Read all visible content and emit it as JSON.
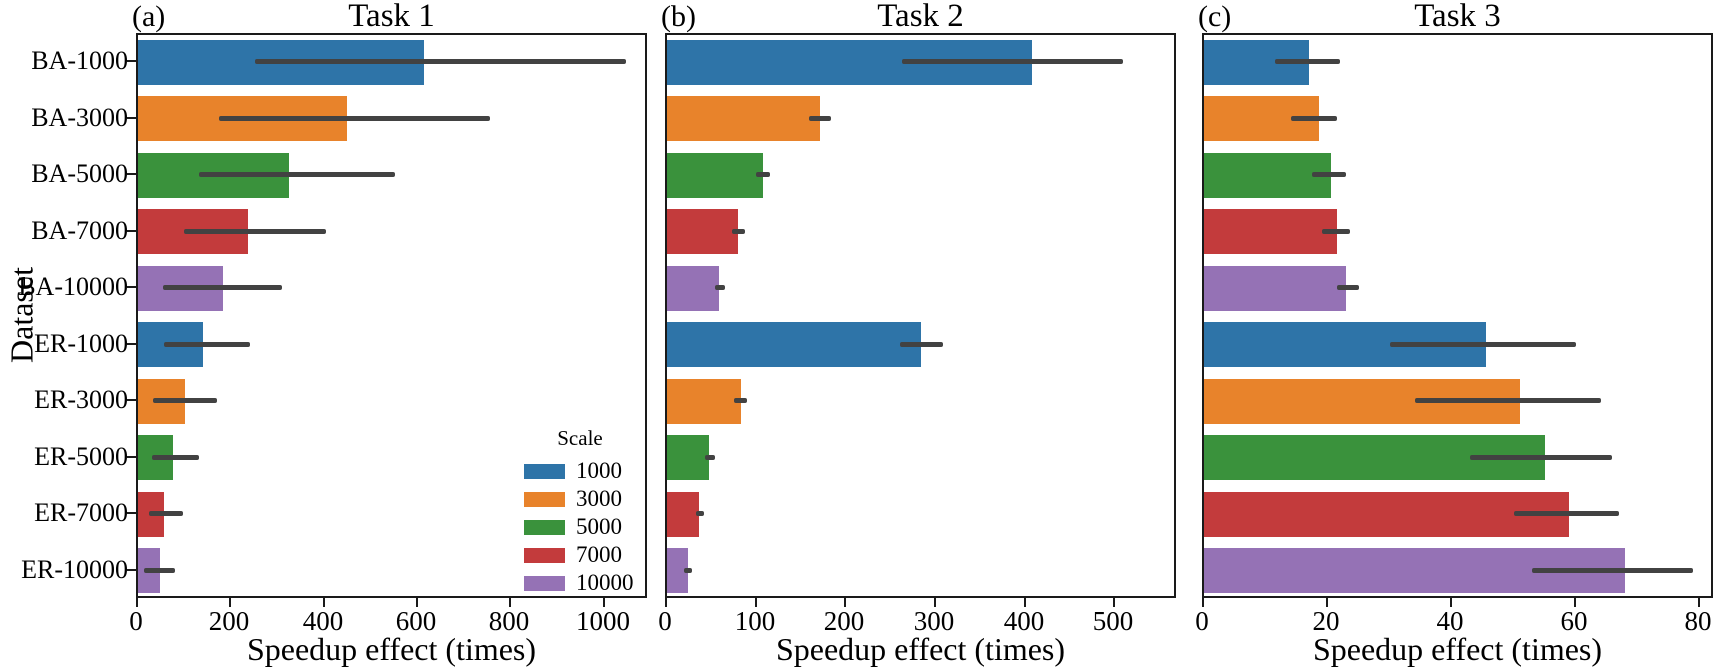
{
  "figure": {
    "ylabel": "Dataset",
    "categories": [
      "BA-1000",
      "BA-3000",
      "BA-5000",
      "BA-7000",
      "BA-10000",
      "ER-1000",
      "ER-3000",
      "ER-5000",
      "ER-7000",
      "ER-10000"
    ],
    "legend": {
      "title": "Scale",
      "entries": [
        {
          "label": "1000",
          "color": "#2e74a8"
        },
        {
          "label": "3000",
          "color": "#e8832b"
        },
        {
          "label": "5000",
          "color": "#3a923c"
        },
        {
          "label": "7000",
          "color": "#c33b3c"
        },
        {
          "label": "10000",
          "color": "#9572b5"
        }
      ]
    },
    "error_bar_color": "#424242",
    "axis_color": "#1a1a1a"
  },
  "chart_data": [
    {
      "type": "bar",
      "orientation": "horizontal",
      "panel_label": "(a)",
      "title": "Task 1",
      "xlabel": "Speedup effect (times)",
      "ylabel": "Dataset",
      "categories": [
        "BA-1000",
        "BA-3000",
        "BA-5000",
        "BA-7000",
        "BA-10000",
        "ER-1000",
        "ER-3000",
        "ER-5000",
        "ER-7000",
        "ER-10000"
      ],
      "values": [
        612,
        448,
        324,
        235,
        183,
        139,
        101,
        75,
        56,
        48
      ],
      "error_low": [
        250,
        174,
        131,
        99,
        54,
        55,
        32,
        30,
        23,
        12
      ],
      "error_high": [
        1045,
        755,
        552,
        403,
        310,
        239,
        169,
        130,
        96,
        78
      ],
      "xlim": [
        0,
        1095
      ],
      "xticks": [
        0,
        200,
        400,
        600,
        800,
        1000
      ],
      "grid": false,
      "show_ytick_labels": true,
      "legend_inside": true,
      "legend_position": "lower right"
    },
    {
      "type": "bar",
      "orientation": "horizontal",
      "panel_label": "(b)",
      "title": "Task 2",
      "xlabel": "Speedup effect (times)",
      "ylabel": "Dataset",
      "categories": [
        "BA-1000",
        "BA-3000",
        "BA-5000",
        "BA-7000",
        "BA-10000",
        "ER-1000",
        "ER-3000",
        "ER-5000",
        "ER-7000",
        "ER-10000"
      ],
      "values": [
        407,
        171,
        107,
        79,
        58,
        283,
        82,
        47,
        36,
        23
      ],
      "error_low": [
        262,
        158,
        99,
        73,
        53,
        260,
        75,
        42,
        32,
        19
      ],
      "error_high": [
        508,
        183,
        115,
        87,
        64,
        308,
        90,
        53,
        41,
        28
      ],
      "xlim": [
        0,
        570
      ],
      "xticks": [
        0,
        100,
        200,
        300,
        400,
        500
      ],
      "grid": false,
      "show_ytick_labels": false,
      "legend_inside": false
    },
    {
      "type": "bar",
      "orientation": "horizontal",
      "panel_label": "(c)",
      "title": "Task 3",
      "xlabel": "Speedup effect (times)",
      "ylabel": "Dataset",
      "categories": [
        "BA-1000",
        "BA-3000",
        "BA-5000",
        "BA-7000",
        "BA-10000",
        "ER-1000",
        "ER-3000",
        "ER-5000",
        "ER-7000",
        "ER-10000"
      ],
      "values": [
        17,
        18.5,
        20.5,
        21.5,
        23,
        45.5,
        51,
        55,
        59,
        68
      ],
      "error_low": [
        11.5,
        14,
        17.5,
        19,
        21.5,
        30,
        34,
        43,
        50,
        53
      ],
      "error_high": [
        22,
        21.5,
        23,
        23.5,
        25,
        60,
        64,
        66,
        67,
        79
      ],
      "xlim": [
        0,
        82.5
      ],
      "xticks": [
        0,
        20,
        40,
        60,
        80
      ],
      "grid": false,
      "show_ytick_labels": false,
      "legend_inside": false
    }
  ]
}
